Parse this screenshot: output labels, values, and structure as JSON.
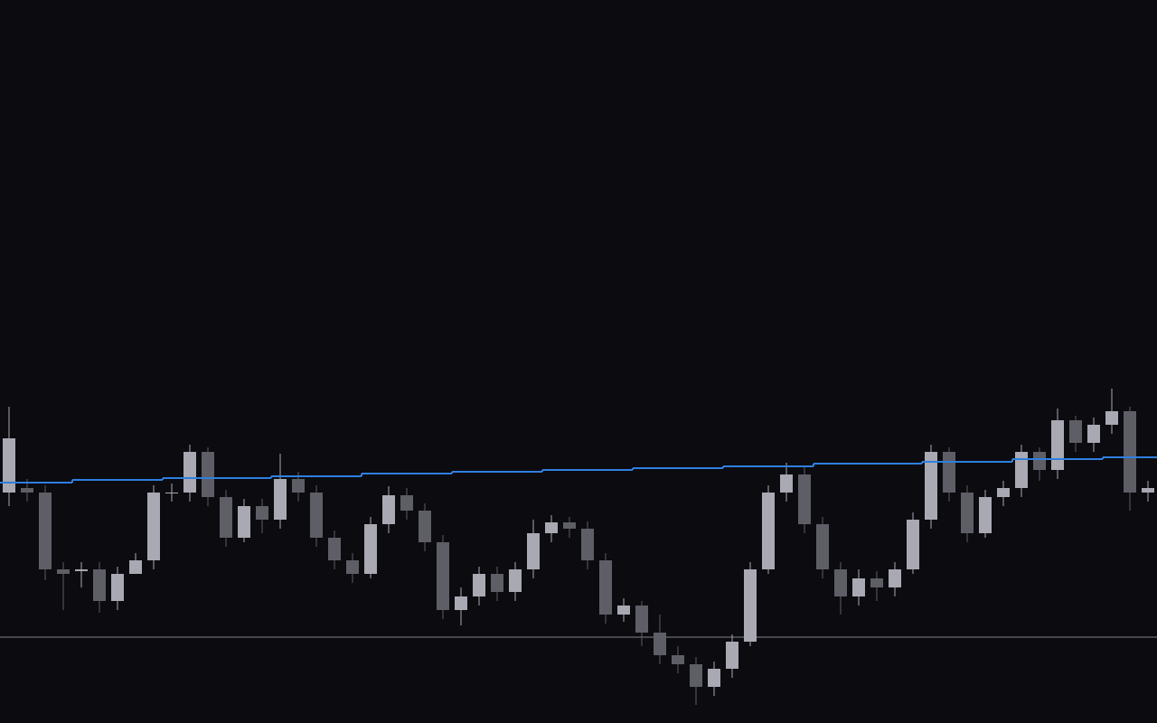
{
  "chart_data": {
    "type": "candlestick",
    "ylim": [
      0,
      800
    ],
    "up_color": "#a9a9b3",
    "down_color": "#5e5e66",
    "open": [
      255,
      260,
      255,
      170,
      168,
      170,
      135,
      165,
      180,
      255,
      255,
      300,
      250,
      205,
      240,
      225,
      270,
      255,
      205,
      180,
      165,
      220,
      252,
      235,
      200,
      125,
      140,
      165,
      145,
      170,
      210,
      222,
      215,
      180,
      120,
      130,
      100,
      75,
      65,
      40,
      60,
      90,
      170,
      255,
      275,
      220,
      170,
      140,
      160,
      150,
      170,
      225,
      300,
      255,
      210,
      250,
      260,
      300,
      280,
      335,
      310,
      330,
      345,
      255
    ],
    "high": [
      350,
      270,
      263,
      178,
      178,
      178,
      173,
      188,
      263,
      265,
      308,
      305,
      258,
      248,
      248,
      298,
      278,
      263,
      213,
      188,
      228,
      262,
      260,
      243,
      208,
      150,
      173,
      173,
      178,
      225,
      230,
      228,
      223,
      188,
      138,
      135,
      120,
      85,
      73,
      68,
      98,
      178,
      263,
      288,
      283,
      228,
      178,
      170,
      168,
      178,
      233,
      308,
      305,
      263,
      258,
      268,
      308,
      305,
      348,
      340,
      338,
      370,
      350,
      268
    ],
    "low": [
      240,
      245,
      158,
      125,
      150,
      122,
      125,
      170,
      170,
      245,
      245,
      240,
      195,
      200,
      210,
      215,
      245,
      195,
      170,
      155,
      160,
      210,
      225,
      190,
      115,
      108,
      130,
      135,
      135,
      160,
      200,
      205,
      170,
      110,
      112,
      85,
      65,
      55,
      20,
      30,
      50,
      85,
      165,
      245,
      210,
      160,
      120,
      130,
      135,
      140,
      165,
      215,
      245,
      200,
      205,
      240,
      250,
      268,
      270,
      300,
      300,
      320,
      235,
      245
    ],
    "close": [
      315,
      255,
      170,
      165,
      170,
      135,
      165,
      180,
      255,
      255,
      300,
      250,
      205,
      240,
      225,
      270,
      255,
      205,
      180,
      165,
      220,
      252,
      235,
      200,
      125,
      140,
      165,
      145,
      170,
      210,
      222,
      215,
      180,
      120,
      130,
      100,
      75,
      65,
      40,
      60,
      90,
      170,
      255,
      275,
      220,
      170,
      140,
      160,
      150,
      170,
      225,
      300,
      255,
      210,
      250,
      260,
      300,
      280,
      335,
      310,
      330,
      345,
      255,
      260
    ],
    "line": {
      "color": "#2f7fe0",
      "values": [
        266,
        266,
        266,
        266,
        269,
        269,
        269,
        269,
        269,
        271,
        271,
        271,
        271,
        271,
        271,
        273,
        273,
        273,
        273,
        273,
        276,
        276,
        276,
        276,
        276,
        278,
        278,
        278,
        278,
        278,
        280,
        280,
        280,
        280,
        280,
        282,
        282,
        282,
        282,
        282,
        284,
        284,
        284,
        284,
        284,
        287,
        287,
        287,
        287,
        287,
        287,
        289,
        289,
        289,
        289,
        289,
        292,
        292,
        292,
        292,
        292,
        294,
        294,
        294
      ]
    },
    "hline": {
      "value": 95,
      "color": "#46464e"
    }
  }
}
